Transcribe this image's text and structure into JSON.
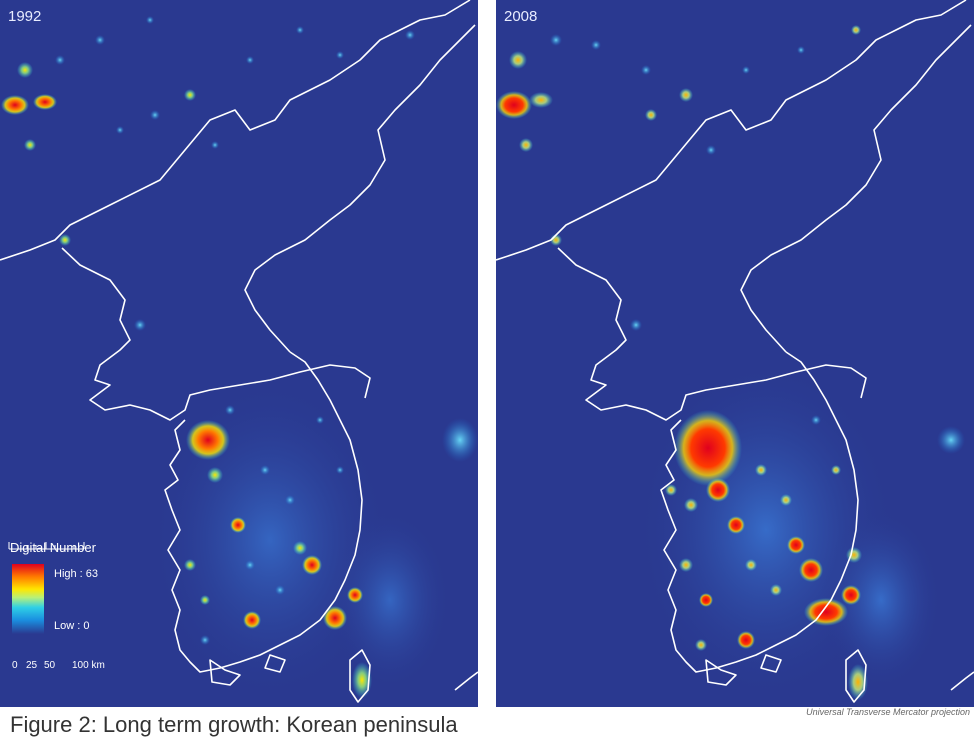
{
  "maps": {
    "left": {
      "year": "1992"
    },
    "right": {
      "year": "2008"
    }
  },
  "legend": {
    "title": "Digital Number",
    "high": "High : 63",
    "low": "Low : 0",
    "scale_ticks": [
      "0",
      "25",
      "50",
      "100 km"
    ]
  },
  "caption": "Figure 2: Long term growth: Korean peninsula",
  "projection": "Universal Transverse Mercator projection",
  "colors": {
    "background": "#2a3990",
    "border": "#ffffff",
    "high": "#e0001e",
    "mid": "#ffe600",
    "low": "#2fd0e6"
  }
}
